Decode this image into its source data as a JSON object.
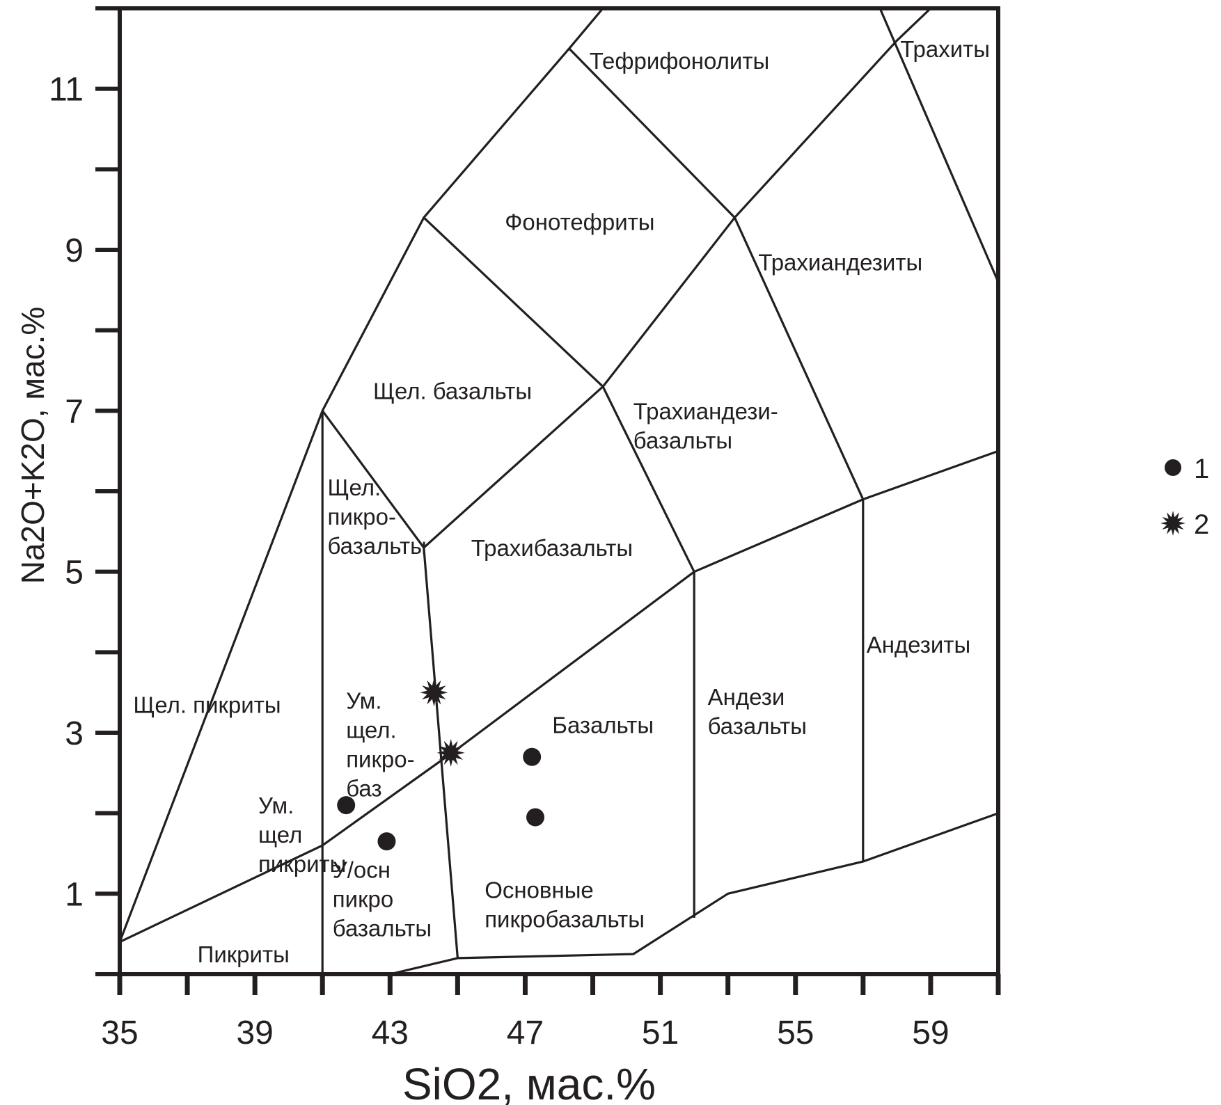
{
  "chart_data": {
    "type": "scatter",
    "title": "",
    "xlabel": "SiO2, мас.%",
    "ylabel": "Na2O+K2O, мас.%",
    "xlim": [
      35,
      61
    ],
    "ylim": [
      0,
      12
    ],
    "x_ticks": [
      "35",
      "39",
      "43",
      "47",
      "51",
      "55",
      "59"
    ],
    "x_tick_values": [
      35,
      39,
      43,
      47,
      51,
      55,
      59
    ],
    "y_ticks": [
      "1",
      "3",
      "5",
      "7",
      "9",
      "11"
    ],
    "y_tick_values": [
      1,
      3,
      5,
      7,
      9,
      11
    ],
    "grid": false,
    "legend": "right",
    "series": [
      {
        "name": "1",
        "marker": "circle",
        "points": [
          [
            41.7,
            2.1
          ],
          [
            42.9,
            1.65
          ],
          [
            47.2,
            2.7
          ],
          [
            47.3,
            1.95
          ]
        ]
      },
      {
        "name": "2",
        "marker": "star",
        "points": [
          [
            44.3,
            3.5
          ],
          [
            44.8,
            2.75
          ]
        ]
      }
    ],
    "boundaries": [
      [
        [
          35,
          0.4
        ],
        [
          41,
          7
        ],
        [
          44,
          9.4
        ],
        [
          48.3,
          11.5
        ],
        [
          49.3,
          12
        ]
      ],
      [
        [
          41,
          7
        ],
        [
          44,
          5.3
        ],
        [
          49.3,
          7.3
        ],
        [
          53.2,
          9.4
        ],
        [
          58,
          11.6
        ],
        [
          59,
          12
        ]
      ],
      [
        [
          35,
          0.4
        ],
        [
          41,
          1.6
        ],
        [
          45,
          2.8
        ],
        [
          52,
          5
        ],
        [
          57,
          5.9
        ],
        [
          61,
          6.5
        ]
      ],
      [
        [
          41,
          0
        ],
        [
          41,
          7
        ]
      ],
      [
        [
          44,
          9.4
        ],
        [
          49.3,
          7.3
        ]
      ],
      [
        [
          48.3,
          11.5
        ],
        [
          53.2,
          9.4
        ]
      ],
      [
        [
          53.2,
          9.4
        ],
        [
          57,
          5.9
        ]
      ],
      [
        [
          49.3,
          7.3
        ],
        [
          52,
          5
        ]
      ],
      [
        [
          44,
          5.3
        ],
        [
          45,
          0.2
        ]
      ],
      [
        [
          52,
          5
        ],
        [
          52,
          0.7
        ]
      ],
      [
        [
          57,
          5.9
        ],
        [
          57,
          1.4
        ]
      ],
      [
        [
          57.5,
          12
        ],
        [
          61,
          8.6
        ]
      ],
      [
        [
          43,
          0
        ],
        [
          45,
          0.2
        ],
        [
          50.2,
          0.25
        ],
        [
          53,
          1
        ],
        [
          57,
          1.4
        ],
        [
          61,
          2
        ]
      ]
    ],
    "field_labels": [
      {
        "lines": [
          "Тефрифонолиты"
        ],
        "x": 48.9,
        "y": 11.35
      },
      {
        "lines": [
          "Трахиты"
        ],
        "x": 58.1,
        "y": 11.5
      },
      {
        "lines": [
          "Фонотефриты"
        ],
        "x": 46.4,
        "y": 9.35
      },
      {
        "lines": [
          "Трахиандезиты"
        ],
        "x": 53.9,
        "y": 8.85
      },
      {
        "lines": [
          "Щел. базальты"
        ],
        "x": 42.5,
        "y": 7.25
      },
      {
        "lines": [
          "Трахиандези-",
          "базальты"
        ],
        "x": 50.2,
        "y": 7.0
      },
      {
        "lines": [
          "Щел.",
          "пикро-",
          "базальты"
        ],
        "x": 41.15,
        "y": 6.05
      },
      {
        "lines": [
          "Трахибазальты"
        ],
        "x": 45.4,
        "y": 5.3
      },
      {
        "lines": [
          "Андезиты"
        ],
        "x": 57.1,
        "y": 4.1
      },
      {
        "lines": [
          "Щел. пикриты"
        ],
        "x": 35.4,
        "y": 3.35
      },
      {
        "lines": [
          "Ум.",
          "щел.",
          "пикро-",
          "баз"
        ],
        "x": 41.7,
        "y": 3.4
      },
      {
        "lines": [
          "Базальты"
        ],
        "x": 47.8,
        "y": 3.1
      },
      {
        "lines": [
          "Андези",
          "базальты"
        ],
        "x": 52.4,
        "y": 3.45
      },
      {
        "lines": [
          "Ум.",
          "щел",
          "пикриты"
        ],
        "x": 39.1,
        "y": 2.1
      },
      {
        "lines": [
          "У/осн",
          "пикро",
          "базальты"
        ],
        "x": 41.3,
        "y": 1.3
      },
      {
        "lines": [
          "Основные",
          "пикробазальты"
        ],
        "x": 45.8,
        "y": 1.05
      },
      {
        "lines": [
          "Пикриты"
        ],
        "x": 37.3,
        "y": 0.25
      }
    ]
  }
}
